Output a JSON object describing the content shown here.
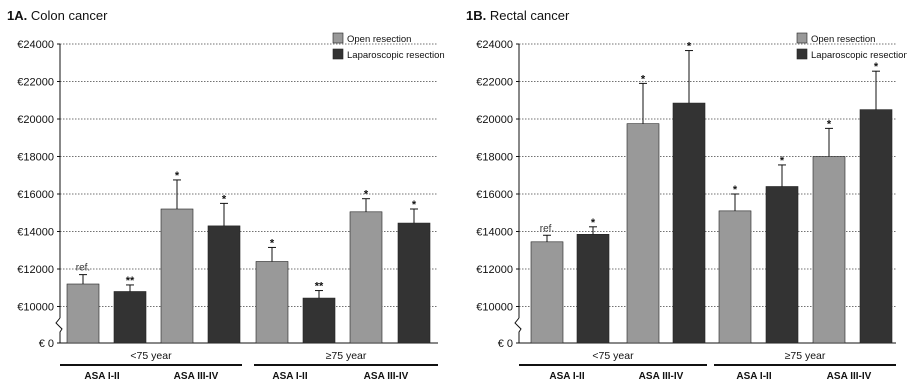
{
  "chart_data": [
    {
      "type": "bar",
      "panel_label": "1A.",
      "title": "Colon cancer",
      "y_ticks": [
        "€ 0",
        "€10000",
        "€12000",
        "€14000",
        "€16000",
        "€18000",
        "€20000",
        "€22000",
        "€24000"
      ],
      "ylim": [
        0,
        24000
      ],
      "axis_break": true,
      "grid": "dotted horizontal",
      "legend": {
        "position": "top-right",
        "entries": [
          "Open resection",
          "Laparoscopic resection"
        ]
      },
      "group_labels": [
        "<75 year",
        "≥75 year"
      ],
      "subgroup_labels": [
        "ASA I-II",
        "ASA III-IV",
        "ASA I-II",
        "ASA III-IV"
      ],
      "series": [
        {
          "name": "Open resection",
          "color": "#999999",
          "values": [
            11200,
            15200,
            12400,
            15050
          ],
          "errors": [
            500,
            1550,
            750,
            700
          ],
          "marks": [
            "ref.",
            "*",
            "*",
            "*"
          ]
        },
        {
          "name": "Laparoscopic resection",
          "color": "#333333",
          "values": [
            10800,
            14300,
            10450,
            14450
          ],
          "errors": [
            350,
            1200,
            400,
            750
          ],
          "marks": [
            "**",
            "*",
            "**",
            "*"
          ]
        }
      ]
    },
    {
      "type": "bar",
      "panel_label": "1B.",
      "title": "Rectal cancer",
      "y_ticks": [
        "€ 0",
        "€10000",
        "€12000",
        "€14000",
        "€16000",
        "€18000",
        "€20000",
        "€22000",
        "€24000"
      ],
      "ylim": [
        0,
        24000
      ],
      "axis_break": true,
      "grid": "dotted horizontal",
      "legend": {
        "position": "top-right",
        "entries": [
          "Open resection",
          "Laparoscopic resection"
        ]
      },
      "group_labels": [
        "<75 year",
        "≥75 year"
      ],
      "subgroup_labels": [
        "ASA I-II",
        "ASA III-IV",
        "ASA I-II",
        "ASA III-IV"
      ],
      "series": [
        {
          "name": "Open resection",
          "color": "#999999",
          "values": [
            13450,
            19750,
            15100,
            18000
          ],
          "errors": [
            350,
            2150,
            900,
            1500
          ],
          "marks": [
            "ref.",
            "*",
            "*",
            "*"
          ]
        },
        {
          "name": "Laparoscopic resection",
          "color": "#333333",
          "values": [
            13850,
            20850,
            16400,
            20500
          ],
          "errors": [
            400,
            2800,
            1150,
            2050
          ],
          "marks": [
            "*",
            "*",
            "*",
            "*"
          ]
        }
      ]
    }
  ]
}
